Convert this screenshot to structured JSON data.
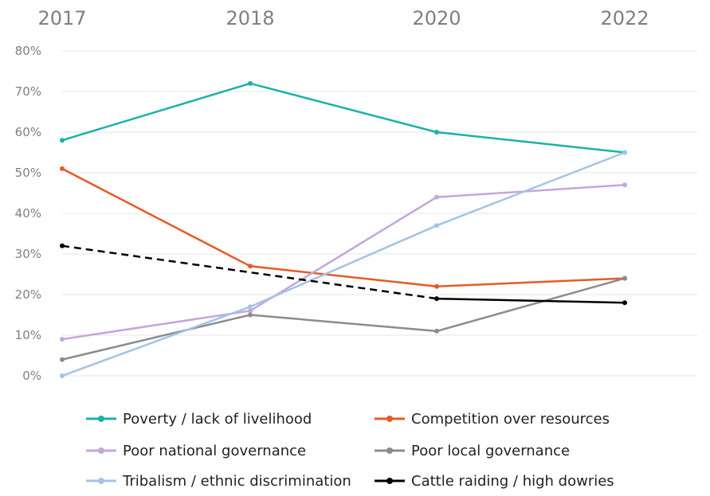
{
  "chart_data": {
    "type": "line",
    "title": "",
    "xlabel": "",
    "ylabel": "",
    "categories": [
      "2017",
      "2018",
      "2020",
      "2022"
    ],
    "ylim": [
      0,
      80
    ],
    "yticks": [
      "0%",
      "10%",
      "20%",
      "30%",
      "40%",
      "50%",
      "60%",
      "70%",
      "80%"
    ],
    "grid": true,
    "legend_position": "bottom",
    "series": [
      {
        "name": "Poverty / lack of livelihood",
        "values": [
          58,
          72,
          60,
          55
        ],
        "color": "#1ab2a8",
        "dashed_segments": []
      },
      {
        "name": "Competition over resources",
        "values": [
          51,
          27,
          22,
          24
        ],
        "color": "#e85a25",
        "dashed_segments": []
      },
      {
        "name": "Poor national governance",
        "values": [
          9,
          16,
          44,
          47
        ],
        "color": "#c3a7dc",
        "dashed_segments": []
      },
      {
        "name": "Poor local governance",
        "values": [
          4,
          15,
          11,
          24
        ],
        "color": "#8c8c8c",
        "dashed_segments": []
      },
      {
        "name": "Tribalism / ethnic discrimination",
        "values": [
          0,
          17,
          37,
          55
        ],
        "color": "#a3c4e6",
        "dashed_segments": []
      },
      {
        "name": "Cattle raiding / high dowries",
        "values": [
          32,
          null,
          19,
          18
        ],
        "color": "#000000",
        "dashed_segments": [
          0
        ]
      }
    ]
  }
}
